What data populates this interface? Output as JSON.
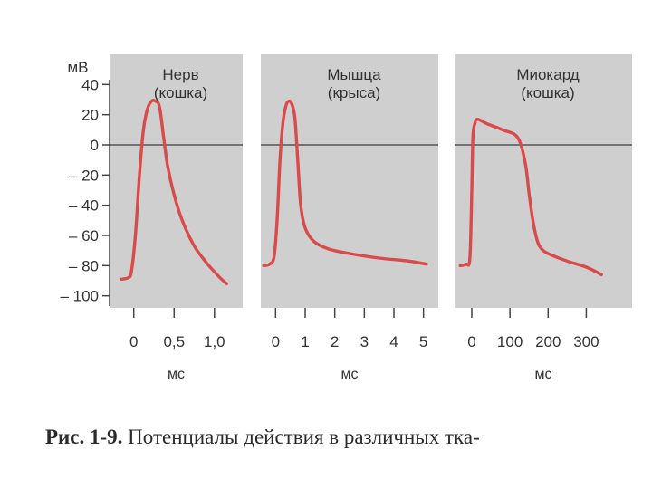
{
  "figure": {
    "y_unit": "мВ",
    "y_ticks": [
      "40",
      "20",
      "0",
      "– 20",
      "– 40",
      "– 60",
      "– 80",
      "– 100"
    ],
    "caption_lead": "Рис. 1-9.",
    "caption_text": "Потенциалы действия в различных тка-"
  },
  "chart_data": [
    {
      "type": "line",
      "title": "Нерв",
      "subtitle": "(кошка)",
      "xlabel": "мс",
      "ylabel": "мВ",
      "x_ticks": [
        0,
        0.5,
        1.0
      ],
      "x_tick_labels": [
        "0",
        "0,5",
        "1,0"
      ],
      "xlim": [
        -0.3,
        1.35
      ],
      "ylim": [
        -108,
        60
      ],
      "y_ticks": [
        40,
        20,
        0,
        -20,
        -40,
        -60,
        -80,
        -100
      ],
      "baseline": 0,
      "grid": false,
      "series": [
        {
          "color": "#d94a4a",
          "x": [
            -0.15,
            -0.07,
            -0.03,
            0.02,
            0.07,
            0.12,
            0.17,
            0.22,
            0.27,
            0.32,
            0.37,
            0.42,
            0.5,
            0.6,
            0.75,
            0.9,
            1.05,
            1.15
          ],
          "y": [
            -89,
            -88,
            -84,
            -60,
            -20,
            10,
            24,
            29,
            29,
            25,
            5,
            -14,
            -33,
            -50,
            -67,
            -78,
            -87,
            -92
          ]
        }
      ]
    },
    {
      "type": "line",
      "title": "Мышца",
      "subtitle": "(крыса)",
      "xlabel": "мс",
      "ylabel": "мВ",
      "x_ticks": [
        0,
        1,
        2,
        3,
        4,
        5
      ],
      "x_tick_labels": [
        "0",
        "1",
        "2",
        "3",
        "4",
        "5"
      ],
      "xlim": [
        -0.5,
        5.5
      ],
      "ylim": [
        -108,
        60
      ],
      "y_ticks": [
        40,
        20,
        0,
        -20,
        -40,
        -60,
        -80,
        -100
      ],
      "baseline": 0,
      "grid": false,
      "series": [
        {
          "color": "#d94a4a",
          "x": [
            -0.4,
            -0.2,
            -0.05,
            0.05,
            0.15,
            0.25,
            0.35,
            0.45,
            0.55,
            0.65,
            0.75,
            0.85,
            1.0,
            1.3,
            1.8,
            2.5,
            3.5,
            4.5,
            5.1
          ],
          "y": [
            -80,
            -79,
            -74,
            -50,
            -10,
            15,
            26,
            29,
            27,
            18,
            -10,
            -40,
            -55,
            -64,
            -69,
            -72,
            -75,
            -77,
            -79
          ]
        }
      ]
    },
    {
      "type": "line",
      "title": "Миокард",
      "subtitle": "(кошка)",
      "xlabel": "мс",
      "ylabel": "мВ",
      "x_ticks": [
        0,
        100,
        200,
        300
      ],
      "x_tick_labels": [
        "0",
        "100",
        "200",
        "300"
      ],
      "xlim": [
        -45,
        420
      ],
      "ylim": [
        -108,
        60
      ],
      "y_ticks": [
        40,
        20,
        0,
        -20,
        -40,
        -60,
        -80,
        -100
      ],
      "baseline": 0,
      "grid": false,
      "series": [
        {
          "color": "#d94a4a",
          "x": [
            -30,
            -15,
            -5,
            0,
            3,
            8,
            15,
            40,
            80,
            120,
            140,
            150,
            160,
            170,
            180,
            200,
            250,
            300,
            340
          ],
          "y": [
            -80,
            -79,
            -75,
            -30,
            5,
            14,
            17,
            14,
            10,
            5,
            -12,
            -32,
            -50,
            -62,
            -68,
            -72,
            -77,
            -81,
            -86
          ]
        }
      ]
    }
  ]
}
